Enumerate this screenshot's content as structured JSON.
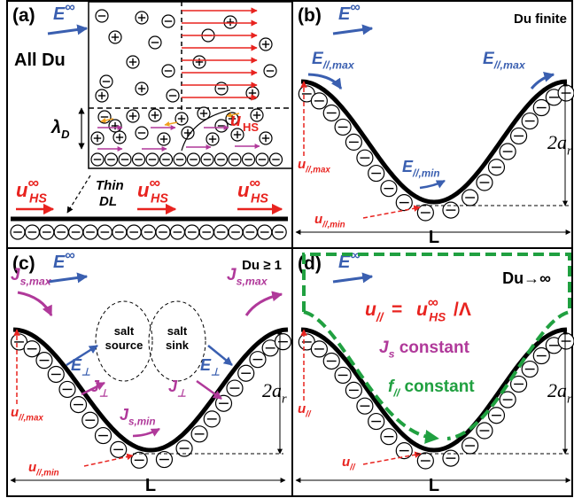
{
  "panels": [
    {
      "label": "(a)",
      "field": {
        "base": "E",
        "sup": "∞"
      },
      "condition": "All Du",
      "debye": {
        "base": "λ",
        "sub": "D"
      },
      "u_hs": {
        "base": "u",
        "sub": "HS"
      },
      "thin_dl": [
        "Thin",
        "DL"
      ],
      "slip": [
        {
          "base": "u",
          "sup": "∞",
          "sub": "HS"
        },
        {
          "base": "u",
          "sup": "∞",
          "sub": "HS"
        },
        {
          "base": "u",
          "sup": "∞",
          "sub": "HS"
        }
      ]
    },
    {
      "label": "(b)",
      "field": {
        "base": "E",
        "sup": "∞"
      },
      "condition": "Du finite",
      "e_max": [
        {
          "base": "E",
          "sub": "//,max"
        },
        {
          "base": "E",
          "sub": "//,max"
        }
      ],
      "e_min": {
        "base": "E",
        "sub": "//,min"
      },
      "u_max": {
        "base": "u",
        "sub": "//,max"
      },
      "u_min": {
        "base": "u",
        "sub": "//,min"
      },
      "amplitude": {
        "base": "2a",
        "sub": "r"
      },
      "wavelength": "L"
    },
    {
      "label": "(c)",
      "field": {
        "base": "E",
        "sup": "∞"
      },
      "condition": "Du ≥ 1",
      "js_max": [
        {
          "base": "J",
          "sub": "s,max"
        },
        {
          "base": "J",
          "sub": "s,max"
        }
      ],
      "js_min": {
        "base": "J",
        "sub": "s,min"
      },
      "source": [
        "salt",
        "source"
      ],
      "sink": [
        "salt",
        "sink"
      ],
      "e_perp": [
        {
          "base": "E",
          "sub": "⊥"
        },
        {
          "base": "E",
          "sub": "⊥"
        }
      ],
      "j_perp": [
        {
          "base": "J",
          "sub": "⊥"
        },
        {
          "base": "J",
          "sub": "⊥"
        }
      ],
      "u_max": {
        "base": "u",
        "sub": "//,max"
      },
      "u_min": {
        "base": "u",
        "sub": "//,min"
      },
      "amplitude": {
        "base": "2a",
        "sub": "r"
      },
      "wavelength": "L"
    },
    {
      "label": "(d)",
      "field": {
        "base": "E",
        "sup": "∞"
      },
      "condition": "Du→∞",
      "slip_lhs": {
        "base": "u",
        "sub": "//"
      },
      "equals": " = ",
      "slip_rhs": {
        "base": "u",
        "sup": "∞",
        "sub": "HS"
      },
      "slip_div": "/Λ",
      "js_const": {
        "base": "J",
        "sub": "s",
        "rest": " constant"
      },
      "f_const": {
        "base": "f",
        "sub": "//",
        "rest": " constant"
      },
      "u_left": {
        "base": "u",
        "sub": "//"
      },
      "u_bottom": {
        "base": "u",
        "sub": "//"
      },
      "amplitude": {
        "base": "2a",
        "sub": "r"
      },
      "wavelength": "L"
    }
  ]
}
